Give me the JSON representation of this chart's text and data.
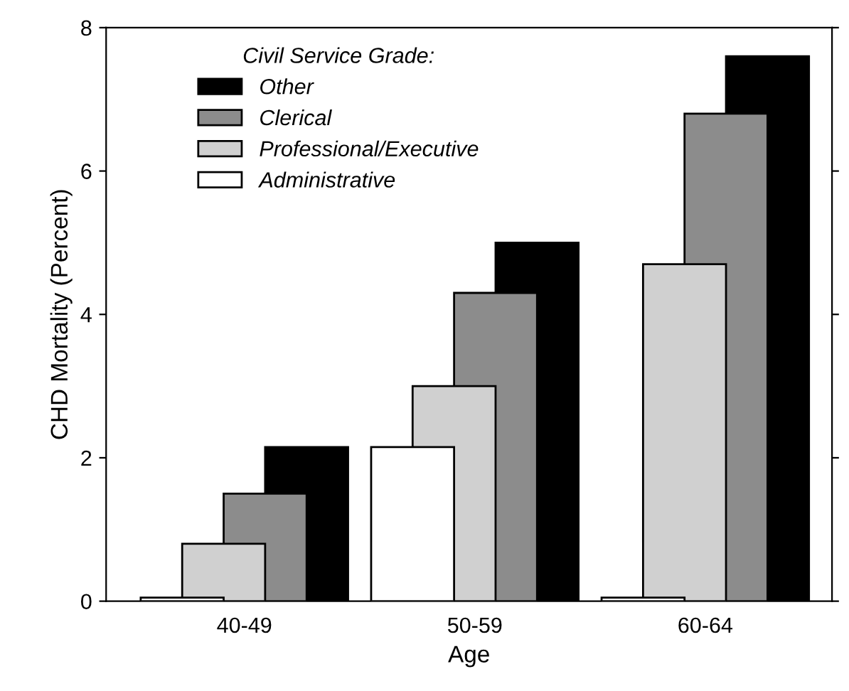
{
  "chart_data": {
    "type": "bar",
    "xlabel": "Age",
    "ylabel": "CHD Mortality (Percent)",
    "legend_title": "Civil Service Grade:",
    "categories": [
      "40-49",
      "50-59",
      "60-64"
    ],
    "series": [
      {
        "name": "Administrative",
        "color": "#ffffff",
        "values": [
          0.05,
          2.15,
          0.05
        ]
      },
      {
        "name": "Professional/Executive",
        "color": "#d0d0d0",
        "values": [
          0.8,
          3.0,
          4.7
        ]
      },
      {
        "name": "Clerical",
        "color": "#8c8c8c",
        "values": [
          1.5,
          4.3,
          6.8
        ]
      },
      {
        "name": "Other",
        "color": "#000000",
        "values": [
          2.15,
          5.0,
          7.6
        ]
      }
    ],
    "ylim": [
      0,
      8
    ],
    "yticks": [
      0,
      2,
      4,
      6,
      8
    ],
    "grid": false,
    "legend": "top left"
  }
}
